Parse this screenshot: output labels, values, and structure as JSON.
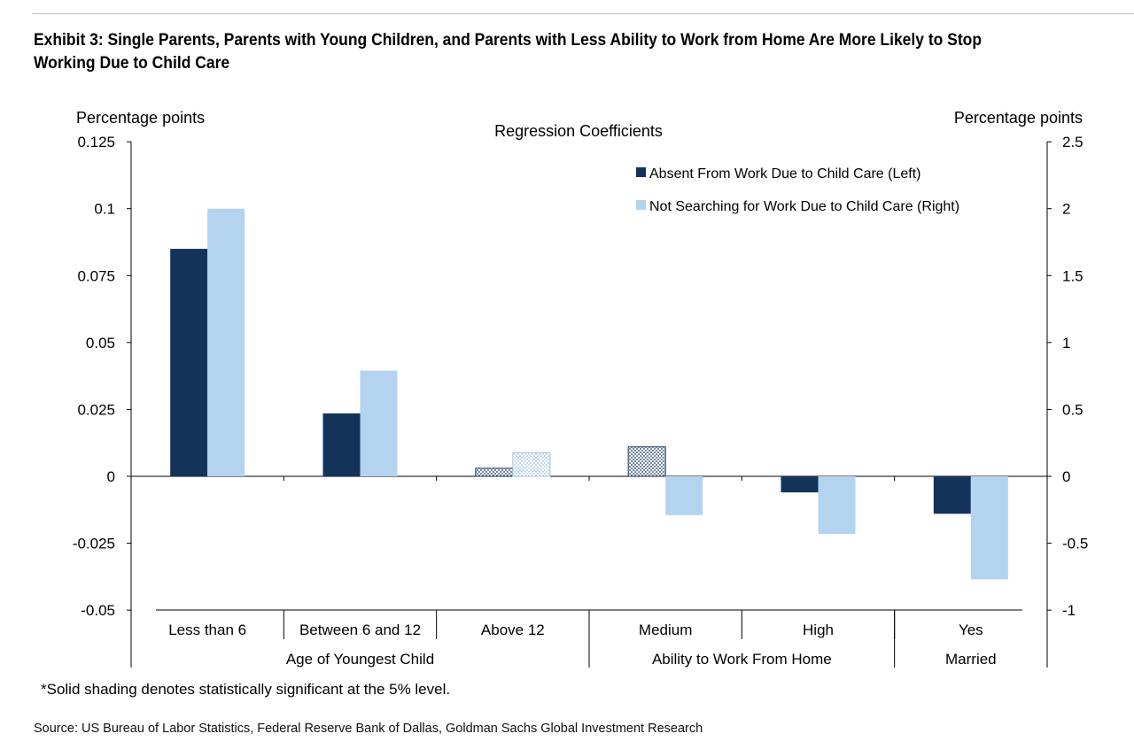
{
  "title": "Exhibit 3: Single Parents, Parents with Young Children, and Parents with Less Ability to Work from Home Are More Likely to Stop Working Due to Child Care",
  "note": "*Solid shading denotes statistically significant at the 5% level.",
  "source": "Source: US Bureau of Labor Statistics, Federal Reserve Bank of Dallas, Goldman Sachs Global Investment Research",
  "chart_data": {
    "type": "bar",
    "subtitle": "Regression Coefficients",
    "ylabel_left": "Percentage points",
    "ylabel_right": "Percentage points",
    "ylim_left": [
      -0.05,
      0.125
    ],
    "ylim_right": [
      -1,
      2.5
    ],
    "left_ticks": [
      "0.125",
      "0.1",
      "0.075",
      "0.05",
      "0.025",
      "0",
      "-0.025",
      "-0.05"
    ],
    "right_ticks": [
      "2.5",
      "2",
      "1.5",
      "1",
      "0.5",
      "0",
      "-0.5",
      "-1"
    ],
    "categories": [
      "Less than 6",
      "Between 6 and 12",
      "Above 12",
      "Medium",
      "High",
      "Yes"
    ],
    "groups": [
      {
        "label": "Age of Youngest Child",
        "span": 3
      },
      {
        "label": "Ability to Work From Home",
        "span": 2
      },
      {
        "label": "Married",
        "span": 1
      }
    ],
    "series": [
      {
        "name": "Absent From Work Due to Child Care (Left)",
        "axis": "left",
        "color": "#13335b",
        "values": [
          0.085,
          0.0235,
          0.003,
          0.011,
          -0.006,
          -0.014
        ],
        "significant": [
          true,
          true,
          false,
          false,
          true,
          true
        ]
      },
      {
        "name": "Not Searching for Work Due to Child Care (Right)",
        "axis": "right",
        "color": "#b4d3ef",
        "values": [
          2.0,
          0.79,
          0.175,
          -0.29,
          -0.43,
          -0.77
        ],
        "significant": [
          true,
          true,
          false,
          true,
          true,
          true
        ]
      }
    ],
    "legend_position": "top-right",
    "grid": false
  }
}
